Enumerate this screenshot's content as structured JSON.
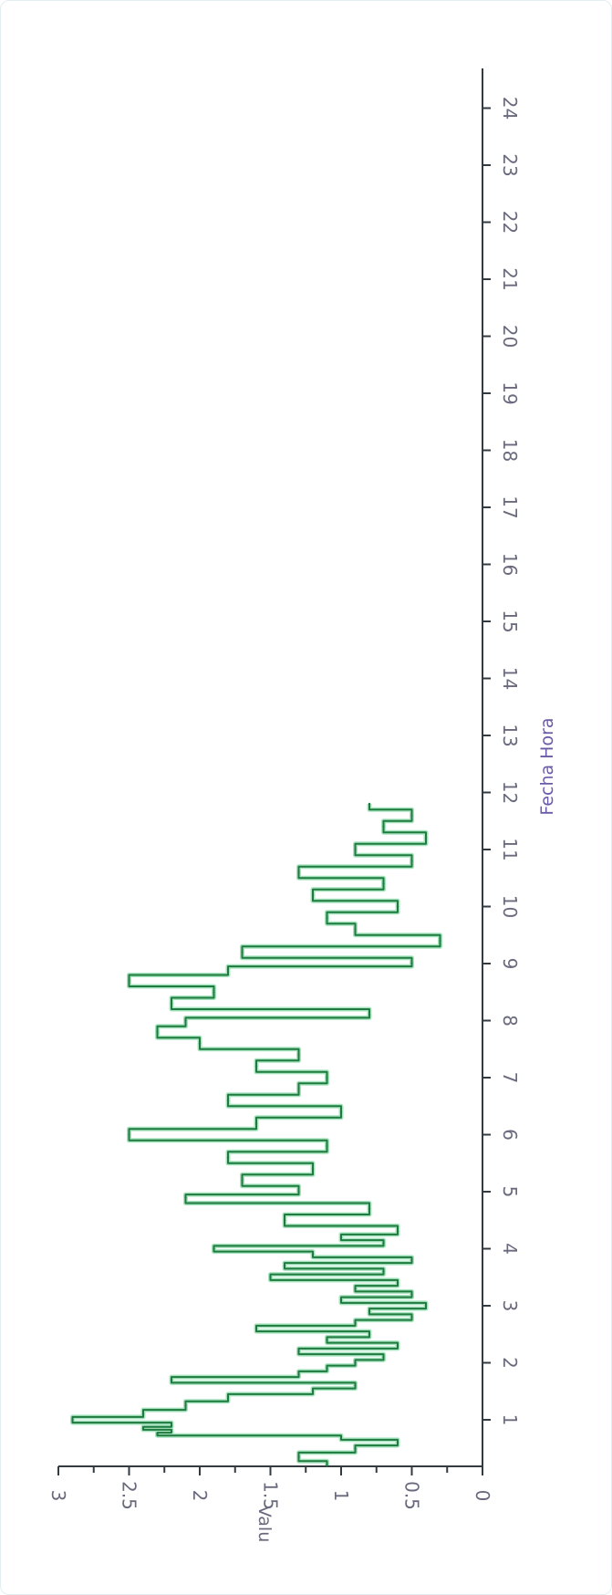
{
  "colors": {
    "axis": "#333a40",
    "tick_text": "#6a6a7e",
    "xlabel": "#6b5aa8",
    "ylabel": "#6a6a7e",
    "line_dark": "#1f7a3e",
    "line_light": "#9ce0b8"
  },
  "chart_data": {
    "type": "line",
    "orientation": "rotated 90deg clockwise",
    "title": "",
    "xlabel": "Fecha Hora",
    "ylabel": "Valu",
    "x_ticks": [
      1,
      2,
      3,
      4,
      5,
      6,
      7,
      8,
      9,
      10,
      11,
      12,
      13,
      14,
      15,
      16,
      17,
      18,
      19,
      20,
      21,
      22,
      23,
      24
    ],
    "xlim": [
      0.2,
      24
    ],
    "ylim": [
      0,
      3
    ],
    "y_ticks": [
      0,
      0.5,
      1,
      1.5,
      2,
      2.5,
      3
    ],
    "y_tick_labels": [
      "0",
      "0.5",
      "1",
      "1.5",
      "2",
      "2.5",
      "3"
    ],
    "grid": false,
    "legend": "none",
    "series": [
      {
        "x": [
          0.2,
          0.35,
          0.5,
          0.6,
          0.7,
          0.75,
          0.8,
          0.85,
          0.9,
          1.0,
          1.1,
          1.25,
          1.4,
          1.5,
          1.6,
          1.7,
          1.8,
          1.9,
          2.0,
          2.1,
          2.2,
          2.3,
          2.4,
          2.5,
          2.6,
          2.7,
          2.8,
          2.9,
          3.0,
          3.1,
          3.2,
          3.3,
          3.4,
          3.5,
          3.6,
          3.7,
          3.8,
          3.9,
          4.0,
          4.1,
          4.2,
          4.3,
          4.5,
          4.7,
          4.9,
          5.0,
          5.2,
          5.4,
          5.6,
          5.8,
          6.0,
          6.2,
          6.4,
          6.6,
          6.8,
          7.0,
          7.2,
          7.4,
          7.6,
          7.8,
          8.0,
          8.1,
          8.3,
          8.5,
          8.7,
          8.9,
          9.0,
          9.2,
          9.4,
          9.6,
          9.8,
          10.0,
          10.2,
          10.4,
          10.6,
          10.8,
          11.0,
          11.2,
          11.4,
          11.6,
          11.8
        ],
        "y": [
          1.1,
          1.3,
          0.9,
          0.6,
          1.0,
          2.3,
          2.2,
          2.4,
          2.2,
          2.9,
          2.4,
          2.1,
          1.8,
          1.2,
          0.9,
          2.2,
          1.3,
          1.1,
          0.9,
          0.7,
          1.3,
          0.6,
          1.1,
          0.8,
          1.6,
          0.9,
          0.5,
          0.8,
          0.4,
          1.0,
          0.5,
          0.9,
          0.6,
          1.5,
          0.7,
          1.4,
          0.5,
          1.2,
          1.9,
          0.7,
          1.0,
          0.6,
          1.4,
          0.8,
          2.1,
          1.3,
          1.7,
          1.2,
          1.8,
          1.1,
          2.5,
          1.6,
          1.0,
          1.8,
          1.3,
          1.1,
          1.6,
          1.3,
          2.0,
          2.3,
          2.1,
          0.8,
          2.2,
          1.9,
          2.5,
          1.8,
          0.5,
          1.7,
          0.3,
          0.9,
          1.1,
          0.6,
          1.2,
          0.7,
          1.3,
          0.5,
          0.9,
          0.4,
          0.7,
          0.5,
          0.8
        ]
      }
    ]
  }
}
